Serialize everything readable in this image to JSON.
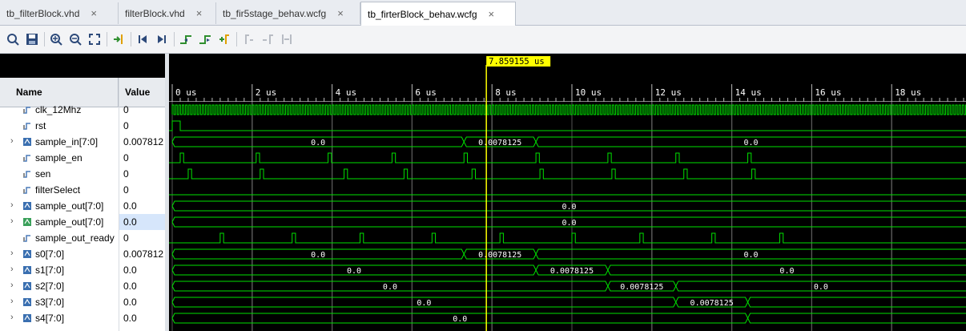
{
  "tabs": [
    {
      "label": "tb_filterBlock.vhd",
      "active": false
    },
    {
      "label": "filterBlock.vhd",
      "active": false
    },
    {
      "label": "tb_fir5stage_behav.wcfg",
      "active": false
    },
    {
      "label": "tb_firterBlock_behav.wcfg",
      "active": true
    }
  ],
  "tab_close_glyph": "×",
  "toolbar_icons": [
    "search-icon",
    "save-icon",
    "zoom-in-icon",
    "zoom-out-icon",
    "zoom-fit-icon",
    "go-to-cursor-icon",
    "go-to-time-0-icon",
    "go-to-last-time-icon",
    "previous-transition-icon",
    "next-transition-icon",
    "add-marker-icon",
    "previous-marker-icon",
    "next-marker-icon",
    "swap-cursors-icon"
  ],
  "columns": {
    "name": "Name",
    "value": "Value"
  },
  "signals": [
    {
      "name": "clk_12Mhz",
      "value": "0",
      "kind": "bit",
      "expandable": false
    },
    {
      "name": "rst",
      "value": "0",
      "kind": "bit",
      "expandable": false
    },
    {
      "name": "sample_in[7:0]",
      "value": "0.007812",
      "kind": "bus",
      "expandable": true
    },
    {
      "name": "sample_en",
      "value": "0",
      "kind": "bit",
      "expandable": false
    },
    {
      "name": "sen",
      "value": "0",
      "kind": "bit",
      "expandable": false
    },
    {
      "name": "filterSelect",
      "value": "0",
      "kind": "bit",
      "expandable": false
    },
    {
      "name": "sample_out[7:0]",
      "value": "0.0",
      "kind": "bus",
      "expandable": true
    },
    {
      "name": "sample_out[7:0]",
      "value": "0.0",
      "kind": "bus",
      "expandable": true,
      "selected": true
    },
    {
      "name": "sample_out_ready",
      "value": "0",
      "kind": "bit",
      "expandable": false
    },
    {
      "name": "s0[7:0]",
      "value": "0.007812",
      "kind": "bus",
      "expandable": true
    },
    {
      "name": "s1[7:0]",
      "value": "0.0",
      "kind": "bus",
      "expandable": true
    },
    {
      "name": "s2[7:0]",
      "value": "0.0",
      "kind": "bus",
      "expandable": true
    },
    {
      "name": "s3[7:0]",
      "value": "0.0",
      "kind": "bus",
      "expandable": true
    },
    {
      "name": "s4[7:0]",
      "value": "0.0",
      "kind": "bus",
      "expandable": true
    }
  ],
  "timeline": {
    "ticks": [
      {
        "t": 0,
        "label": "0 us"
      },
      {
        "t": 2,
        "label": "2 us"
      },
      {
        "t": 4,
        "label": "4 us"
      },
      {
        "t": 6,
        "label": "6 us"
      },
      {
        "t": 8,
        "label": "8 us"
      },
      {
        "t": 10,
        "label": "10 us"
      },
      {
        "t": 12,
        "label": "12 us"
      },
      {
        "t": 14,
        "label": "14 us"
      },
      {
        "t": 16,
        "label": "16 us"
      },
      {
        "t": 18,
        "label": "18 us"
      }
    ],
    "cursor": {
      "t": 7.859155,
      "label": "7.859155 us"
    }
  },
  "colors": {
    "wave": "#00e000",
    "cursor": "#ffff00",
    "background": "#000000",
    "grid": "#555555"
  },
  "waveforms": {
    "rst_pulse_end_us": 0.2,
    "sample_en_pulses_us": [
      0.2,
      2.1,
      3.9,
      5.5,
      7.3,
      9.1,
      10.9,
      12.6,
      14.4
    ],
    "sen_pulses_us": [
      0.4,
      2.2,
      4.3,
      5.8,
      7.5,
      9.2,
      11.0,
      12.8,
      14.5
    ],
    "sample_out_ready_pulses_us": [
      1.2,
      3.0,
      4.7,
      6.5,
      8.2,
      10.0,
      11.7,
      13.5,
      15.2
    ],
    "buses": [
      {
        "row": 2,
        "segments": [
          {
            "t0": 0,
            "t1": 7.3,
            "label": "0.0"
          },
          {
            "t0": 7.3,
            "t1": 9.1,
            "label": "0.0078125"
          },
          {
            "t0": 9.1,
            "t1": 20.0,
            "label": "0.0"
          }
        ]
      },
      {
        "row": 6,
        "segments": [
          {
            "t0": 0,
            "t1": 20.0,
            "label": "0.0"
          }
        ]
      },
      {
        "row": 7,
        "segments": [
          {
            "t0": 0,
            "t1": 20.0,
            "label": "0.0"
          }
        ]
      },
      {
        "row": 9,
        "segments": [
          {
            "t0": 0,
            "t1": 7.3,
            "label": "0.0"
          },
          {
            "t0": 7.3,
            "t1": 9.1,
            "label": "0.0078125"
          },
          {
            "t0": 9.1,
            "t1": 20.0,
            "label": "0.0"
          }
        ]
      },
      {
        "row": 10,
        "segments": [
          {
            "t0": 0,
            "t1": 9.1,
            "label": "0.0"
          },
          {
            "t0": 9.1,
            "t1": 10.9,
            "label": "0.0078125"
          },
          {
            "t0": 10.9,
            "t1": 20.2,
            "label": "0.0"
          }
        ]
      },
      {
        "row": 11,
        "segments": [
          {
            "t0": 0,
            "t1": 10.9,
            "label": "0.0"
          },
          {
            "t0": 10.9,
            "t1": 12.6,
            "label": "0.0078125"
          },
          {
            "t0": 12.6,
            "t1": 20.0,
            "label": "0.0"
          }
        ]
      },
      {
        "row": 12,
        "segments": [
          {
            "t0": 0,
            "t1": 12.6,
            "label": "0.0"
          },
          {
            "t0": 12.6,
            "t1": 14.4,
            "label": "0.0078125"
          },
          {
            "t0": 14.4,
            "t1": 20.0,
            "label": ""
          }
        ]
      },
      {
        "row": 13,
        "segments": [
          {
            "t0": 0,
            "t1": 14.4,
            "label": "0.0"
          },
          {
            "t0": 14.4,
            "t1": 20.0,
            "label": ""
          }
        ]
      }
    ]
  }
}
